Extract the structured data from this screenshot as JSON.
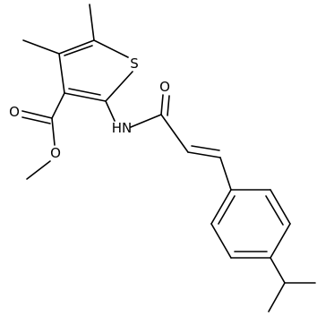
{
  "atoms": {
    "sulfur": "S",
    "ester_carbonyl_oxygen": "O",
    "ester_ether_oxygen": "O",
    "amide_oxygen": "O",
    "amide_nitrogen": "HN"
  }
}
